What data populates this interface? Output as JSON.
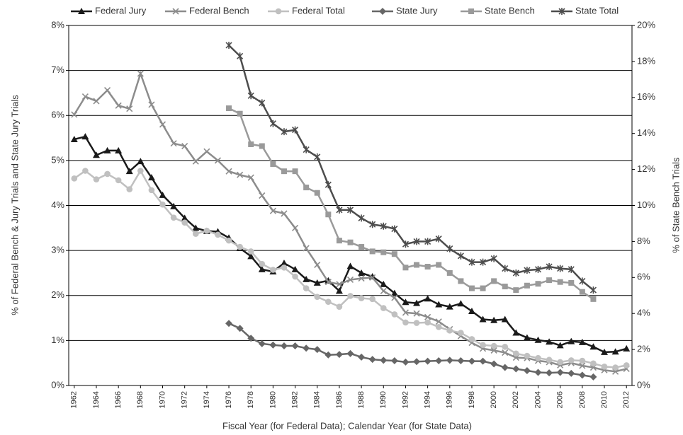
{
  "chart_data": {
    "type": "line",
    "xlabel": "Fiscal Year (for Federal Data); Calendar Year (for State Data)",
    "ylabel": "% of Federal Bench & Jury Trials and State Jury Trials",
    "y2label": "% of State Bench Trials",
    "x": [
      1962,
      1963,
      1964,
      1965,
      1966,
      1967,
      1968,
      1969,
      1970,
      1971,
      1972,
      1973,
      1974,
      1975,
      1976,
      1977,
      1978,
      1979,
      1980,
      1981,
      1982,
      1983,
      1984,
      1985,
      1986,
      1987,
      1988,
      1989,
      1990,
      1991,
      1992,
      1993,
      1994,
      1995,
      1996,
      1997,
      1998,
      1999,
      2000,
      2001,
      2002,
      2003,
      2004,
      2005,
      2006,
      2007,
      2008,
      2009,
      2010,
      2011,
      2012
    ],
    "xlim": [
      1961.5,
      2012.5
    ],
    "xticks": [
      1962,
      1964,
      1966,
      1968,
      1970,
      1972,
      1974,
      1976,
      1978,
      1980,
      1982,
      1984,
      1986,
      1988,
      1990,
      1992,
      1994,
      1996,
      1998,
      2000,
      2002,
      2004,
      2006,
      2008,
      2010,
      2012
    ],
    "ylim": [
      0,
      8
    ],
    "yticks": [
      {
        "value": 0,
        "label": "0%"
      },
      {
        "value": 1,
        "label": "1%"
      },
      {
        "value": 2,
        "label": "2%"
      },
      {
        "value": 3,
        "label": "3%"
      },
      {
        "value": 4,
        "label": "4%"
      },
      {
        "value": 5,
        "label": "5%"
      },
      {
        "value": 6,
        "label": "6%"
      },
      {
        "value": 7,
        "label": "7%"
      },
      {
        "value": 8,
        "label": "8%"
      }
    ],
    "y2lim": [
      0,
      20
    ],
    "y2ticks": [
      {
        "value": 0,
        "label": "0%"
      },
      {
        "value": 2,
        "label": "2%"
      },
      {
        "value": 4,
        "label": "4%"
      },
      {
        "value": 6,
        "label": "6%"
      },
      {
        "value": 8,
        "label": "8%"
      },
      {
        "value": 10,
        "label": "10%"
      },
      {
        "value": 12,
        "label": "12%"
      },
      {
        "value": 14,
        "label": "14%"
      },
      {
        "value": 16,
        "label": "16%"
      },
      {
        "value": 18,
        "label": "18%"
      },
      {
        "value": 20,
        "label": "20%"
      }
    ],
    "grid": true,
    "legend": "top",
    "series": [
      {
        "name": "Federal Jury",
        "color": "#1a1a1a",
        "marker": "triangle",
        "values": [
          5.47,
          5.53,
          5.12,
          5.22,
          5.22,
          4.76,
          4.98,
          4.62,
          4.23,
          3.98,
          3.72,
          3.5,
          3.43,
          3.42,
          3.28,
          3.05,
          2.87,
          2.58,
          2.53,
          2.72,
          2.58,
          2.36,
          2.28,
          2.33,
          2.1,
          2.65,
          2.5,
          2.42,
          2.25,
          2.05,
          1.85,
          1.83,
          1.93,
          1.8,
          1.75,
          1.82,
          1.65,
          1.47,
          1.45,
          1.47,
          1.17,
          1.06,
          1.01,
          0.97,
          0.89,
          0.98,
          0.96,
          0.86,
          0.74,
          0.75,
          0.82
        ]
      },
      {
        "name": "Federal Bench",
        "color": "#8c8c8c",
        "marker": "x",
        "values": [
          6.02,
          6.42,
          6.32,
          6.56,
          6.22,
          6.15,
          6.93,
          6.24,
          5.8,
          5.38,
          5.32,
          4.98,
          5.2,
          5.0,
          4.76,
          4.68,
          4.62,
          4.22,
          3.88,
          3.82,
          3.5,
          3.05,
          2.68,
          2.3,
          2.25,
          2.35,
          2.38,
          2.4,
          2.1,
          1.95,
          1.62,
          1.6,
          1.52,
          1.42,
          1.25,
          1.1,
          0.95,
          0.82,
          0.78,
          0.73,
          0.62,
          0.61,
          0.55,
          0.52,
          0.45,
          0.5,
          0.44,
          0.4,
          0.34,
          0.31,
          0.37
        ]
      },
      {
        "name": "Federal Total",
        "color": "#c0c0c0",
        "marker": "circle",
        "values": [
          4.6,
          4.77,
          4.58,
          4.7,
          4.56,
          4.36,
          4.77,
          4.34,
          4.02,
          3.73,
          3.62,
          3.37,
          3.44,
          3.35,
          3.22,
          3.08,
          2.98,
          2.7,
          2.57,
          2.62,
          2.42,
          2.16,
          1.97,
          1.86,
          1.75,
          1.99,
          1.94,
          1.92,
          1.72,
          1.58,
          1.4,
          1.39,
          1.4,
          1.3,
          1.22,
          1.17,
          1.03,
          0.9,
          0.88,
          0.86,
          0.71,
          0.66,
          0.61,
          0.57,
          0.52,
          0.56,
          0.55,
          0.49,
          0.42,
          0.4,
          0.45
        ]
      },
      {
        "name": "State Jury",
        "color": "#666666",
        "marker": "diamond",
        "values": [
          null,
          null,
          null,
          null,
          null,
          null,
          null,
          null,
          null,
          null,
          null,
          null,
          null,
          null,
          1.38,
          1.27,
          1.05,
          0.93,
          0.9,
          0.88,
          0.88,
          0.83,
          0.8,
          0.68,
          0.69,
          0.71,
          0.63,
          0.58,
          0.56,
          0.55,
          0.52,
          0.53,
          0.54,
          0.55,
          0.56,
          0.55,
          0.54,
          0.54,
          0.48,
          0.4,
          0.37,
          0.33,
          0.29,
          0.28,
          0.29,
          0.27,
          0.23,
          0.19,
          null,
          null,
          null
        ]
      },
      {
        "name": "State Bench",
        "color": "#9a9a9a",
        "marker": "square",
        "axis": "y2",
        "values": [
          null,
          null,
          null,
          null,
          null,
          null,
          null,
          null,
          null,
          null,
          null,
          null,
          null,
          null,
          15.4,
          15.1,
          13.4,
          13.3,
          12.3,
          11.9,
          11.9,
          11.0,
          10.7,
          9.5,
          8.05,
          7.95,
          7.7,
          7.45,
          7.4,
          7.3,
          6.55,
          6.7,
          6.6,
          6.7,
          6.25,
          5.8,
          5.4,
          5.4,
          5.8,
          5.5,
          5.3,
          5.55,
          5.65,
          5.85,
          5.75,
          5.7,
          5.2,
          4.8,
          null,
          null,
          null
        ]
      },
      {
        "name": "State Total",
        "color": "#4d4d4d",
        "marker": "asterisk",
        "axis": "y2",
        "values": [
          null,
          null,
          null,
          null,
          null,
          null,
          null,
          null,
          null,
          null,
          null,
          null,
          null,
          null,
          18.9,
          18.3,
          16.1,
          15.7,
          14.55,
          14.1,
          14.2,
          13.1,
          12.7,
          11.15,
          9.75,
          9.75,
          9.3,
          8.95,
          8.85,
          8.7,
          7.85,
          8.0,
          8.0,
          8.15,
          7.6,
          7.2,
          6.85,
          6.85,
          7.05,
          6.5,
          6.25,
          6.4,
          6.45,
          6.6,
          6.5,
          6.45,
          5.8,
          5.3,
          null,
          null,
          null
        ]
      }
    ]
  }
}
